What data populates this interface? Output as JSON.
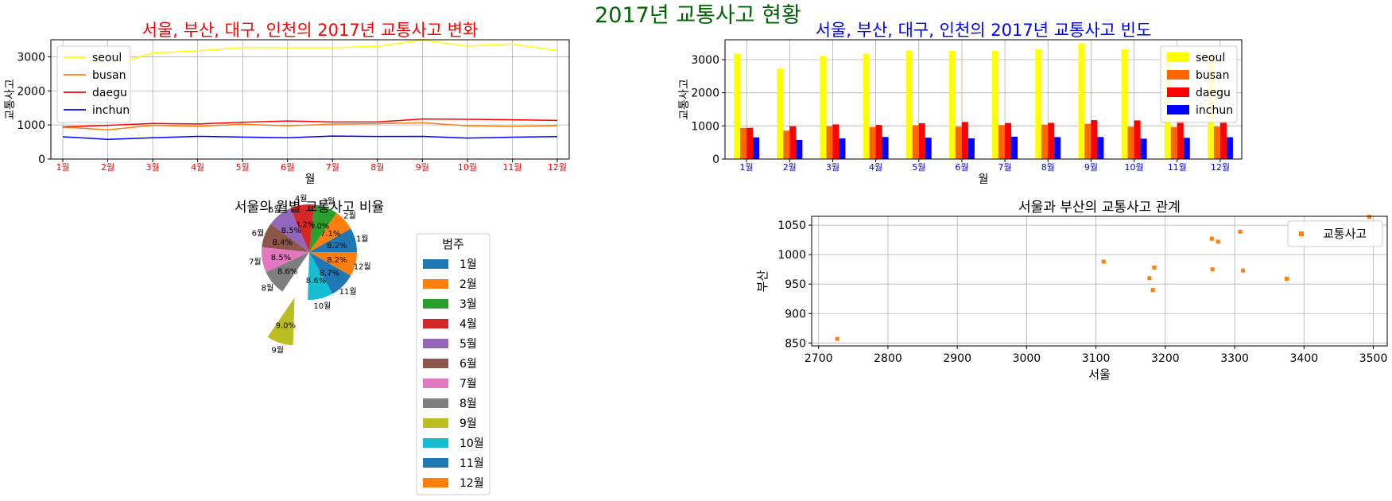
{
  "figure": {
    "suptitle": "2017년 교통사고 현황",
    "suptitle_color": "#006400"
  },
  "chart_data": [
    {
      "type": "line",
      "title": "서울, 부산, 대구, 인천의 2017년 교통사고 변화",
      "title_color": "#ff0000",
      "xlabel": "월",
      "ylabel": "교통사고",
      "tick_color": "#ff0000",
      "categories": [
        "1월",
        "2월",
        "3월",
        "4월",
        "5월",
        "6월",
        "7월",
        "8월",
        "9월",
        "10월",
        "11월",
        "12월"
      ],
      "ylim": [
        0,
        3500
      ],
      "yticks": [
        0,
        1000,
        2000,
        3000
      ],
      "grid": true,
      "legend": "upper-left",
      "series": [
        {
          "name": "seoul",
          "color": "#ffff00",
          "values": [
            3182,
            2727,
            3111,
            3177,
            3276,
            3268,
            3267,
            3308,
            3494,
            3312,
            3375,
            3184
          ]
        },
        {
          "name": "busan",
          "color": "#ff7f0e",
          "values": [
            940,
            857,
            988,
            960,
            1022,
            975,
            1027,
            1039,
            1064,
            973,
            959,
            978
          ]
        },
        {
          "name": "daegu",
          "color": "#ff0000",
          "values": [
            942,
            990,
            1045,
            1030,
            1080,
            1118,
            1088,
            1092,
            1174,
            1167,
            1152,
            1134
          ]
        },
        {
          "name": "inchun",
          "color": "#0000ff",
          "values": [
            654,
            578,
            623,
            666,
            645,
            625,
            675,
            662,
            664,
            615,
            641,
            659
          ]
        }
      ]
    },
    {
      "type": "bar",
      "title": "서울, 부산, 대구, 인천의 2017년 교통사고 빈도",
      "title_color": "#0000ff",
      "xlabel": "월",
      "ylabel": "교통사고",
      "tick_color": "#0000ff",
      "categories": [
        "1월",
        "2월",
        "3월",
        "4월",
        "5월",
        "6월",
        "7월",
        "8월",
        "9월",
        "10월",
        "11월",
        "12월"
      ],
      "ylim": [
        0,
        3600
      ],
      "yticks": [
        0,
        1000,
        2000,
        3000
      ],
      "grid": true,
      "legend": "upper-right",
      "series": [
        {
          "name": "seoul",
          "color": "#ffff00",
          "values": [
            3182,
            2727,
            3111,
            3177,
            3276,
            3268,
            3267,
            3308,
            3494,
            3312,
            3375,
            3184
          ]
        },
        {
          "name": "busan",
          "color": "#ff6600",
          "values": [
            940,
            857,
            988,
            960,
            1022,
            975,
            1027,
            1039,
            1064,
            973,
            959,
            978
          ]
        },
        {
          "name": "daegu",
          "color": "#ff0000",
          "values": [
            942,
            990,
            1045,
            1030,
            1080,
            1118,
            1088,
            1092,
            1174,
            1167,
            1152,
            1134
          ]
        },
        {
          "name": "inchun",
          "color": "#0000ff",
          "values": [
            654,
            578,
            623,
            666,
            645,
            625,
            675,
            662,
            664,
            615,
            641,
            659
          ]
        }
      ]
    },
    {
      "type": "pie",
      "title": "서울의 월별 교통사고 비율",
      "legend_title": "범주",
      "legend": "right",
      "exploded_slice": "9월",
      "labels": [
        "1월",
        "2월",
        "3월",
        "4월",
        "5월",
        "6월",
        "7월",
        "8월",
        "9월",
        "10월",
        "11월",
        "12월"
      ],
      "values": [
        8.2,
        7.1,
        8.0,
        8.2,
        8.5,
        8.4,
        8.5,
        8.6,
        9.0,
        8.6,
        8.7,
        8.2
      ],
      "pct_labels": [
        "8.2%",
        "7.1%",
        "8.0%",
        "8.2%",
        "8.5%",
        "8.4%",
        "8.5%",
        "8.6%",
        "9.0%",
        "8.6%",
        "8.7%",
        "8.2%"
      ],
      "colors": [
        "#1f77b4",
        "#ff7f0e",
        "#2ca02c",
        "#d62728",
        "#9467bd",
        "#8c564b",
        "#e377c2",
        "#7f7f7f",
        "#bcbd22",
        "#17becf",
        "#1f77b4",
        "#ff7f0e"
      ]
    },
    {
      "type": "scatter",
      "title": "서울과 부산의 교통사고 관계",
      "xlabel": "서울",
      "ylabel": "부산",
      "xlim": [
        2690,
        3520
      ],
      "ylim": [
        845,
        1065
      ],
      "xticks": [
        2700,
        2800,
        2900,
        3000,
        3100,
        3200,
        3300,
        3400,
        3500
      ],
      "yticks": [
        850,
        900,
        950,
        1000,
        1050
      ],
      "grid": true,
      "legend": "upper-right",
      "series": [
        {
          "name": "교통사고",
          "color": "#ff7f0e",
          "x": [
            3182,
            2727,
            3111,
            3177,
            3276,
            3268,
            3267,
            3308,
            3494,
            3312,
            3375,
            3184
          ],
          "y": [
            940,
            857,
            988,
            960,
            1022,
            975,
            1027,
            1039,
            1064,
            973,
            959,
            978
          ]
        }
      ]
    }
  ]
}
